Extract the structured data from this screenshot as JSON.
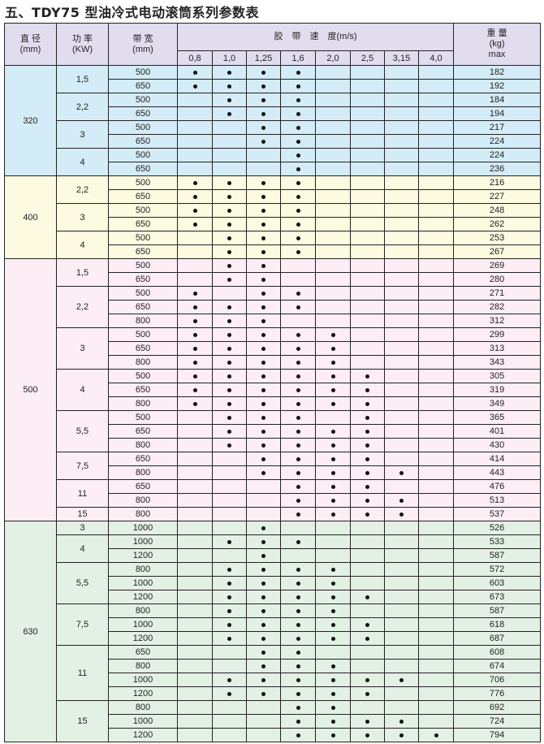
{
  "title": "五、TDY75 型油冷式电动滚筒系列参数表",
  "header": {
    "diameter": "直 径",
    "diameter_unit": "(mm)",
    "power": "功 率",
    "power_unit": "(KW)",
    "width": "带 宽",
    "width_unit": "(mm)",
    "speed": "胶　带　速　度(m/s)",
    "speeds": [
      "0,8",
      "1,0",
      "1,25",
      "1,6",
      "2,0",
      "2,5",
      "3,15",
      "4,0"
    ],
    "weight": "重 量",
    "weight_unit": "(kg)",
    "weight_note": "max"
  },
  "colors": {
    "header": "#e1ddef",
    "320": "#d4ecf8",
    "400": "#fcfbe1",
    "500": "#fdeef5",
    "630": "#e3f1e4",
    "dot": "#111111"
  },
  "groups": [
    {
      "diameter": "320",
      "powers": [
        {
          "power": "1,5",
          "rows": [
            {
              "width": "500",
              "dots": [
                1,
                1,
                1,
                1,
                0,
                0,
                0,
                0
              ],
              "weight": "182"
            },
            {
              "width": "650",
              "dots": [
                1,
                1,
                1,
                1,
                0,
                0,
                0,
                0
              ],
              "weight": "192"
            }
          ]
        },
        {
          "power": "2,2",
          "rows": [
            {
              "width": "500",
              "dots": [
                0,
                1,
                1,
                1,
                0,
                0,
                0,
                0
              ],
              "weight": "184"
            },
            {
              "width": "650",
              "dots": [
                0,
                1,
                1,
                1,
                0,
                0,
                0,
                0
              ],
              "weight": "194"
            }
          ]
        },
        {
          "power": "3",
          "rows": [
            {
              "width": "500",
              "dots": [
                0,
                0,
                1,
                1,
                0,
                0,
                0,
                0
              ],
              "weight": "217"
            },
            {
              "width": "650",
              "dots": [
                0,
                0,
                1,
                1,
                0,
                0,
                0,
                0
              ],
              "weight": "224"
            }
          ]
        },
        {
          "power": "4",
          "rows": [
            {
              "width": "500",
              "dots": [
                0,
                0,
                0,
                1,
                0,
                0,
                0,
                0
              ],
              "weight": "224"
            },
            {
              "width": "650",
              "dots": [
                0,
                0,
                0,
                1,
                0,
                0,
                0,
                0
              ],
              "weight": "236"
            }
          ]
        }
      ]
    },
    {
      "diameter": "400",
      "powers": [
        {
          "power": "2,2",
          "rows": [
            {
              "width": "500",
              "dots": [
                1,
                1,
                1,
                1,
                0,
                0,
                0,
                0
              ],
              "weight": "216"
            },
            {
              "width": "650",
              "dots": [
                1,
                1,
                1,
                1,
                0,
                0,
                0,
                0
              ],
              "weight": "227"
            }
          ]
        },
        {
          "power": "3",
          "rows": [
            {
              "width": "500",
              "dots": [
                1,
                1,
                1,
                1,
                0,
                0,
                0,
                0
              ],
              "weight": "248"
            },
            {
              "width": "650",
              "dots": [
                1,
                1,
                1,
                1,
                0,
                0,
                0,
                0
              ],
              "weight": "262"
            }
          ]
        },
        {
          "power": "4",
          "rows": [
            {
              "width": "500",
              "dots": [
                0,
                1,
                1,
                1,
                0,
                0,
                0,
                0
              ],
              "weight": "253"
            },
            {
              "width": "650",
              "dots": [
                0,
                1,
                1,
                1,
                0,
                0,
                0,
                0
              ],
              "weight": "267"
            }
          ]
        }
      ]
    },
    {
      "diameter": "500",
      "powers": [
        {
          "power": "1,5",
          "rows": [
            {
              "width": "500",
              "dots": [
                0,
                1,
                1,
                0,
                0,
                0,
                0,
                0
              ],
              "weight": "269"
            },
            {
              "width": "650",
              "dots": [
                0,
                1,
                1,
                0,
                0,
                0,
                0,
                0
              ],
              "weight": "280"
            }
          ]
        },
        {
          "power": "2,2",
          "rows": [
            {
              "width": "500",
              "dots": [
                1,
                0,
                1,
                1,
                0,
                0,
                0,
                0
              ],
              "weight": "271"
            },
            {
              "width": "650",
              "dots": [
                1,
                1,
                1,
                1,
                0,
                0,
                0,
                0
              ],
              "weight": "282"
            },
            {
              "width": "800",
              "dots": [
                1,
                1,
                1,
                0,
                0,
                0,
                0,
                0
              ],
              "weight": "312"
            }
          ]
        },
        {
          "power": "3",
          "rows": [
            {
              "width": "500",
              "dots": [
                1,
                1,
                1,
                1,
                1,
                0,
                0,
                0
              ],
              "weight": "299"
            },
            {
              "width": "650",
              "dots": [
                1,
                1,
                1,
                1,
                1,
                0,
                0,
                0
              ],
              "weight": "313"
            },
            {
              "width": "800",
              "dots": [
                1,
                1,
                1,
                1,
                1,
                0,
                0,
                0
              ],
              "weight": "343"
            }
          ]
        },
        {
          "power": "4",
          "rows": [
            {
              "width": "500",
              "dots": [
                1,
                1,
                1,
                1,
                1,
                1,
                0,
                0
              ],
              "weight": "305"
            },
            {
              "width": "650",
              "dots": [
                1,
                1,
                1,
                1,
                1,
                1,
                0,
                0
              ],
              "weight": "319"
            },
            {
              "width": "800",
              "dots": [
                1,
                1,
                1,
                1,
                1,
                1,
                0,
                0
              ],
              "weight": "349"
            }
          ]
        },
        {
          "power": "5,5",
          "rows": [
            {
              "width": "500",
              "dots": [
                0,
                1,
                1,
                1,
                0,
                1,
                0,
                0
              ],
              "weight": "365"
            },
            {
              "width": "650",
              "dots": [
                0,
                1,
                1,
                1,
                1,
                1,
                0,
                0
              ],
              "weight": "401"
            },
            {
              "width": "800",
              "dots": [
                0,
                1,
                1,
                1,
                1,
                1,
                0,
                0
              ],
              "weight": "430"
            }
          ]
        },
        {
          "power": "7,5",
          "rows": [
            {
              "width": "650",
              "dots": [
                0,
                0,
                1,
                1,
                1,
                1,
                0,
                0
              ],
              "weight": "414"
            },
            {
              "width": "800",
              "dots": [
                0,
                0,
                1,
                1,
                1,
                1,
                1,
                0
              ],
              "weight": "443"
            }
          ]
        },
        {
          "power": "11",
          "rows": [
            {
              "width": "650",
              "dots": [
                0,
                0,
                0,
                1,
                1,
                1,
                0,
                0
              ],
              "weight": "476"
            },
            {
              "width": "800",
              "dots": [
                0,
                0,
                0,
                1,
                1,
                1,
                1,
                0
              ],
              "weight": "513"
            }
          ]
        },
        {
          "power": "15",
          "rows": [
            {
              "width": "800",
              "dots": [
                0,
                0,
                0,
                1,
                1,
                1,
                1,
                0
              ],
              "weight": "537"
            }
          ]
        }
      ]
    },
    {
      "diameter": "630",
      "powers": [
        {
          "power": "3",
          "rows": [
            {
              "width": "1000",
              "dots": [
                0,
                0,
                1,
                0,
                0,
                0,
                0,
                0
              ],
              "weight": "526"
            }
          ]
        },
        {
          "power": "4",
          "rows": [
            {
              "width": "1000",
              "dots": [
                0,
                1,
                1,
                1,
                0,
                0,
                0,
                0
              ],
              "weight": "533"
            },
            {
              "width": "1200",
              "dots": [
                0,
                0,
                1,
                0,
                0,
                0,
                0,
                0
              ],
              "weight": "587"
            }
          ]
        },
        {
          "power": "5,5",
          "rows": [
            {
              "width": "800",
              "dots": [
                0,
                1,
                1,
                1,
                1,
                0,
                0,
                0
              ],
              "weight": "572"
            },
            {
              "width": "1000",
              "dots": [
                0,
                1,
                1,
                1,
                1,
                0,
                0,
                0
              ],
              "weight": "603"
            },
            {
              "width": "1200",
              "dots": [
                0,
                1,
                1,
                1,
                1,
                1,
                0,
                0
              ],
              "weight": "673"
            }
          ]
        },
        {
          "power": "7,5",
          "rows": [
            {
              "width": "800",
              "dots": [
                0,
                1,
                1,
                1,
                1,
                0,
                0,
                0
              ],
              "weight": "587"
            },
            {
              "width": "1000",
              "dots": [
                0,
                1,
                1,
                1,
                1,
                1,
                0,
                0
              ],
              "weight": "618"
            },
            {
              "width": "1200",
              "dots": [
                0,
                1,
                1,
                1,
                1,
                1,
                0,
                0
              ],
              "weight": "687"
            }
          ]
        },
        {
          "power": "11",
          "rows": [
            {
              "width": "650",
              "dots": [
                0,
                0,
                1,
                1,
                0,
                0,
                0,
                0
              ],
              "weight": "608"
            },
            {
              "width": "800",
              "dots": [
                0,
                0,
                1,
                1,
                1,
                0,
                0,
                0
              ],
              "weight": "674"
            },
            {
              "width": "1000",
              "dots": [
                0,
                1,
                1,
                1,
                1,
                1,
                1,
                0
              ],
              "weight": "706"
            },
            {
              "width": "1200",
              "dots": [
                0,
                1,
                1,
                1,
                1,
                1,
                0,
                0
              ],
              "weight": "776"
            }
          ]
        },
        {
          "power": "15",
          "rows": [
            {
              "width": "800",
              "dots": [
                0,
                0,
                0,
                1,
                1,
                0,
                0,
                0
              ],
              "weight": "692"
            },
            {
              "width": "1000",
              "dots": [
                0,
                0,
                0,
                1,
                1,
                1,
                1,
                0
              ],
              "weight": "724"
            },
            {
              "width": "1200",
              "dots": [
                0,
                0,
                0,
                1,
                1,
                1,
                1,
                1
              ],
              "weight": "794"
            }
          ]
        }
      ]
    }
  ]
}
